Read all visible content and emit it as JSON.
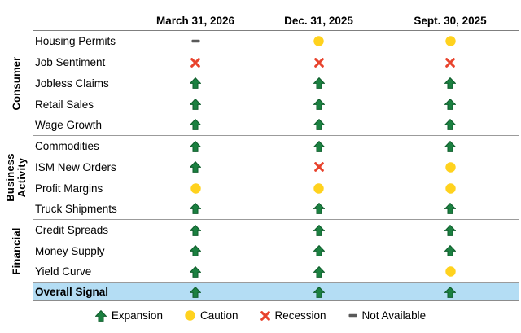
{
  "colors": {
    "expansion_green": "#1B8040",
    "expansion_outline": "#0E5C2B",
    "caution_yellow": "#FFD21E",
    "recession_red": "#E8432D",
    "not_available_gray": "#595959",
    "overall_row_bg": "#B4DDF4",
    "grid_line": "#8C8C8C"
  },
  "chart_data": {
    "type": "table",
    "title": "",
    "columns": [
      "March 31, 2026",
      "Dec. 31, 2025",
      "Sept. 30, 2025"
    ],
    "groups": [
      {
        "name": "Consumer",
        "rows": [
          {
            "label": "Housing Permits",
            "signals": [
              "not_available",
              "caution",
              "caution"
            ]
          },
          {
            "label": "Job Sentiment",
            "signals": [
              "recession",
              "recession",
              "recession"
            ]
          },
          {
            "label": "Jobless Claims",
            "signals": [
              "expansion",
              "expansion",
              "expansion"
            ]
          },
          {
            "label": "Retail Sales",
            "signals": [
              "expansion",
              "expansion",
              "expansion"
            ]
          },
          {
            "label": "Wage Growth",
            "signals": [
              "expansion",
              "expansion",
              "expansion"
            ]
          }
        ]
      },
      {
        "name": "Business Activity",
        "rows": [
          {
            "label": "Commodities",
            "signals": [
              "expansion",
              "expansion",
              "expansion"
            ]
          },
          {
            "label": "ISM New Orders",
            "signals": [
              "expansion",
              "recession",
              "caution"
            ]
          },
          {
            "label": "Profit Margins",
            "signals": [
              "caution",
              "caution",
              "caution"
            ]
          },
          {
            "label": "Truck Shipments",
            "signals": [
              "expansion",
              "expansion",
              "expansion"
            ]
          }
        ]
      },
      {
        "name": "Financial",
        "rows": [
          {
            "label": "Credit Spreads",
            "signals": [
              "expansion",
              "expansion",
              "expansion"
            ]
          },
          {
            "label": "Money Supply",
            "signals": [
              "expansion",
              "expansion",
              "expansion"
            ]
          },
          {
            "label": "Yield Curve",
            "signals": [
              "expansion",
              "expansion",
              "caution"
            ]
          }
        ]
      }
    ],
    "overall_row": {
      "label": "Overall Signal",
      "signals": [
        "expansion",
        "expansion",
        "expansion"
      ]
    },
    "legend": [
      {
        "signal": "expansion",
        "label": "Expansion"
      },
      {
        "signal": "caution",
        "label": "Caution"
      },
      {
        "signal": "recession",
        "label": "Recession"
      },
      {
        "signal": "not_available",
        "label": "Not Available"
      }
    ]
  }
}
